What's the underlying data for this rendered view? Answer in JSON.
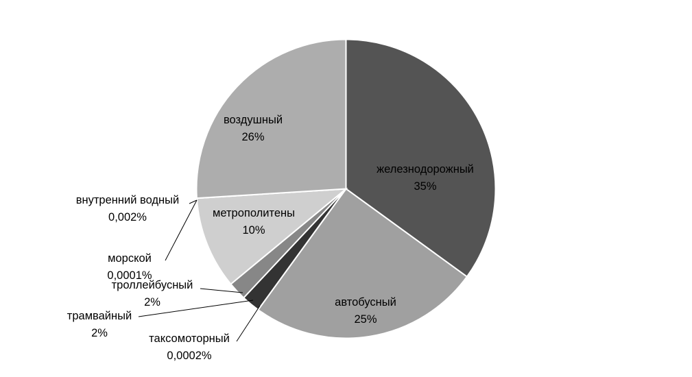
{
  "chart_data": {
    "type": "pie",
    "title": "",
    "slices": [
      {
        "label": "железнодорожный",
        "pct_label": "35%",
        "value": 35,
        "color": "#545454"
      },
      {
        "label": "автобусный",
        "pct_label": "25%",
        "value": 25,
        "color": "#a0a0a0"
      },
      {
        "label": "таксомоторный",
        "pct_label": "0,0002%",
        "value": 0.0002,
        "color": "#ffffff"
      },
      {
        "label": "трамвайный",
        "pct_label": "2%",
        "value": 2,
        "color": "#333333"
      },
      {
        "label": "троллейбусный",
        "pct_label": "2%",
        "value": 2,
        "color": "#878787"
      },
      {
        "label": "морской",
        "pct_label": "0,0001%",
        "value": 0.0001,
        "color": "#ffffff"
      },
      {
        "label": "метрополитены",
        "pct_label": "10%",
        "value": 10,
        "color": "#cfcfcf"
      },
      {
        "label": "внутренний водный",
        "pct_label": "0,002%",
        "value": 0.002,
        "color": "#ffffff"
      },
      {
        "label": "воздушный",
        "pct_label": "26%",
        "value": 26,
        "color": "#adadad"
      }
    ]
  }
}
